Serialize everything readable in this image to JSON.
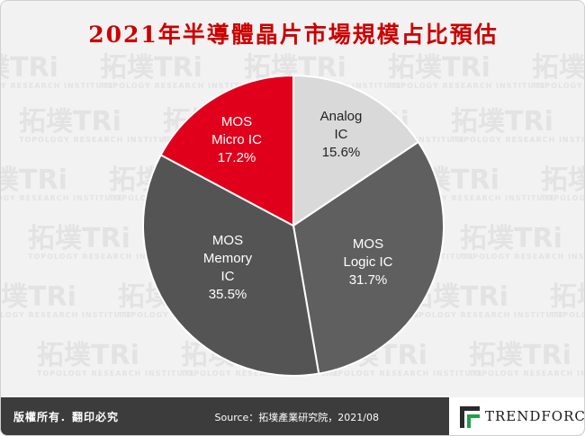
{
  "title": "2021年半導體晶片市場規模占比預估",
  "watermark": {
    "brand": "拓墣TRi",
    "tagline": "TOPOLOGY RESEARCH INSTITUTE"
  },
  "footer": {
    "rights": "版權所有．翻印必究",
    "source": "Source：拓墣產業研究院，2021/08",
    "logo_text": "TRENDFORCE"
  },
  "colors": {
    "title": "#cc0000",
    "analog": "#d9d9d9",
    "logic": "#5f5f5f",
    "memory": "#545454",
    "micro": "#e0001b"
  },
  "chart_data": {
    "type": "pie",
    "slices": [
      {
        "label_lines": [
          "Analog",
          "IC"
        ],
        "value": 15.6,
        "value_label": "15.6%",
        "color": "#d9d9d9",
        "text_color": "#222222"
      },
      {
        "label_lines": [
          "MOS",
          "Logic IC"
        ],
        "value": 31.7,
        "value_label": "31.7%",
        "color": "#5f5f5f",
        "text_color": "#ffffff"
      },
      {
        "label_lines": [
          "MOS",
          "Memory",
          "IC"
        ],
        "value": 35.5,
        "value_label": "35.5%",
        "color": "#545454",
        "text_color": "#ffffff"
      },
      {
        "label_lines": [
          "MOS",
          "Micro IC"
        ],
        "value": 17.2,
        "value_label": "17.2%",
        "color": "#e0001b",
        "text_color": "#ffffff"
      }
    ]
  }
}
